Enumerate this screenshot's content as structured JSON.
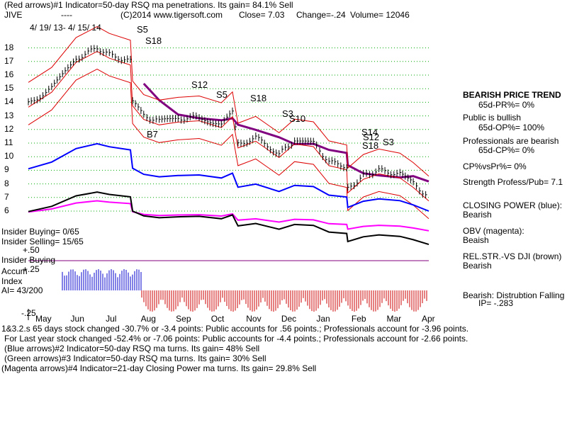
{
  "header": {
    "line1": "(Red arrows)#1 Indicator=50-day RSQ ma penetrations. Its gain= 84.1% Sell",
    "ticker": "JIVE",
    "dashes": "----",
    "copyright": "(C)2014 www.tigersoft.com",
    "close": "Close=  7.03",
    "change": "Change=-.24",
    "volume": "Volume= 12046",
    "date_range": "4/ 19/ 13-  4/ 15/ 14"
  },
  "signals": [
    "S5",
    "S18",
    "S12",
    "S5",
    "S18",
    "S3",
    "S10",
    "S14",
    "S12",
    "S18",
    "S3",
    "B7"
  ],
  "left_labels": {
    "insider_buying": "Insider Buying= 0/65",
    "insider_selling": "Insider Selling= 15/65",
    "plus50": "+.50",
    "insider_buying2": "Insider Buying",
    "accum1": "Accum",
    "plus25": "+.25",
    "accum2": "Index",
    "ai": "AI= 43/200",
    "minus25": "-.25"
  },
  "right_panel": {
    "trend_title": "BEARISH PRICE TREND",
    "pr": "65d-PR%= 0%",
    "public": "Public is bullish",
    "op": "65d-OP%= 100%",
    "professionals": "Professionals are bearish",
    "cp": "65d-CP%= 0%",
    "cpvspr": "CP%vsPr%=  0%",
    "strength": "Strength Profess/Pub= 7.1",
    "closing_power": "CLOSING POWER (blue):",
    "closing_power_v": "Bearish",
    "obv": "OBV (magenta):",
    "obv_v": "Beaish",
    "relstr": "REL.STR.-VS DJI (brown)",
    "relstr_v": "Bearish",
    "bearish_dist": "Bearish:  Distrubtion Falling",
    "ip": "IP= -.283"
  },
  "footer": {
    "line1": "1&3.2.s 65 days stock changed -30.7% or -3.4 points:  Public accounts for .56 points.;  Professionals account for -3.96 points.",
    "line2": "For Last year stock changed -52.4% or -7.06 points:  Public accounts for -4.4 points.;  Professionals account for -2.66 points.",
    "line3": "(Blue arrows)#2 Indicator=50-day RSQ ma turns. Its gain= 48% Sell",
    "line4": "(Green arrows)#3 Indicator=50-day RSQ ma turns. Its gain= 30% Sell",
    "line5": "(Magenta arrows)#4 Indicator=21-day Closing Power ma turns. Its gain= 29.8% Sell"
  },
  "chart_data": {
    "type": "line",
    "x_months": [
      "May",
      "Jun",
      "Jul",
      "Aug",
      "Sep",
      "Oct",
      "Nov",
      "Dec",
      "Jan",
      "Feb",
      "Mar",
      "Apr"
    ],
    "y_ticks": [
      18,
      17,
      16,
      15,
      14,
      13,
      12,
      11,
      10,
      9,
      8,
      7,
      6
    ],
    "ylim": [
      6,
      18.5
    ],
    "price_x": [
      "2013-04-19",
      "2013-05-10",
      "2013-06-01",
      "2013-06-20",
      "2013-07-01",
      "2013-07-20",
      "2013-07-22",
      "2013-08-01",
      "2013-08-15",
      "2013-09-01",
      "2013-09-20",
      "2013-10-10",
      "2013-10-20",
      "2013-10-25",
      "2013-11-10",
      "2013-12-01",
      "2013-12-15",
      "2014-01-01",
      "2014-01-15",
      "2014-01-31",
      "2014-02-01",
      "2014-02-15",
      "2014-03-01",
      "2014-03-20",
      "2014-04-01",
      "2014-04-15"
    ],
    "price_y": [
      13.9,
      15.0,
      17.2,
      18.0,
      17.5,
      17.0,
      14.0,
      13.0,
      12.6,
      12.8,
      12.9,
      12.4,
      13.2,
      10.9,
      11.4,
      10.2,
      11.2,
      11.0,
      9.6,
      9.3,
      7.6,
      8.6,
      9.0,
      8.7,
      8.0,
      7.0
    ],
    "colors": {
      "price": "#000000",
      "ma": "#800080",
      "band": "#dd0000",
      "closing_power": "#0000ff",
      "obv": "#ff00ff",
      "relstr": "#000000",
      "accum_pos": "#0000cc",
      "accum_neg": "#cc0000",
      "grid": "#00aa00"
    }
  }
}
